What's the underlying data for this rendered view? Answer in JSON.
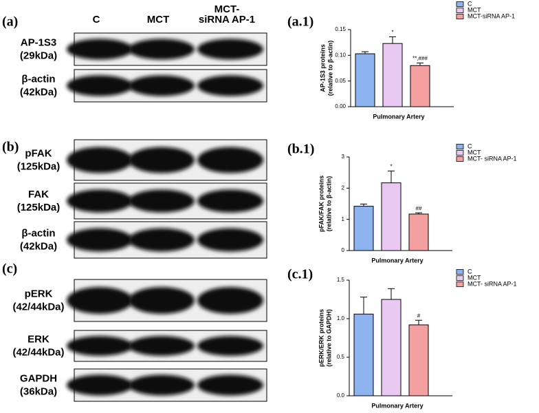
{
  "blots": [
    {
      "label": "(a)",
      "lanes": [
        "C",
        "MCT",
        [
          "MCT-",
          "siRNA AP-1"
        ]
      ],
      "rows": [
        {
          "name": "AP-1S3",
          "mw": "(29kDa)"
        },
        {
          "name": "β-actin",
          "mw": "(42kDa)"
        }
      ]
    },
    {
      "label": "(b)",
      "rows": [
        {
          "name": "pFAK",
          "mw": "(125kDa)"
        },
        {
          "name": "FAK",
          "mw": "(125kDa)"
        },
        {
          "name": "β-actin",
          "mw": "(42kDa)"
        }
      ]
    },
    {
      "label": "(c)",
      "rows": [
        {
          "name": "pERK",
          "mw": "(42/44kDa)"
        },
        {
          "name": "ERK",
          "mw": "(42/44kDa)"
        },
        {
          "name": "GAPDH",
          "mw": "(36kDa)"
        }
      ]
    }
  ],
  "chart_data": [
    {
      "type": "bar",
      "label": "(a.1)",
      "ylabel": [
        "AP-1S3 proteins",
        "(relative to β-actin)"
      ],
      "categories": [
        "Pulmonary Artery"
      ],
      "ylim": [
        0,
        0.15
      ],
      "yticks": [
        {
          "value": 0,
          "label": "0.00"
        },
        {
          "value": 0.05,
          "label": "0.05"
        },
        {
          "value": 0.1,
          "label": "0.10"
        },
        {
          "value": 0.15,
          "label": "0.15"
        }
      ],
      "series": [
        {
          "name": "C",
          "color": "#8db3f0",
          "values": [
            0.103
          ],
          "errors": [
            0.004
          ],
          "annotation": null
        },
        {
          "name": "MCT",
          "color": "#e9c9f2",
          "values": [
            0.123
          ],
          "errors": [
            0.013
          ],
          "annotation": "*"
        },
        {
          "name": "MCT-siRNA AP-1",
          "color": "#f4a0a0",
          "values": [
            0.08
          ],
          "errors": [
            0.005
          ],
          "annotation": "**,###"
        }
      ]
    },
    {
      "type": "bar",
      "label": "(b.1)",
      "ylabel": [
        "pFAK/FAK proteins",
        "(relative to β-actin)"
      ],
      "categories": [
        "Pulmonary Artery"
      ],
      "ylim": [
        0,
        3
      ],
      "yticks": [
        0,
        1,
        2,
        3
      ],
      "series": [
        {
          "name": "C",
          "color": "#8db3f0",
          "values": [
            1.42
          ],
          "errors": [
            0.07
          ],
          "annotation": null
        },
        {
          "name": "MCT",
          "color": "#e9c9f2",
          "values": [
            2.17
          ],
          "errors": [
            0.38
          ],
          "annotation": "*"
        },
        {
          "name": "MCT- siRNA AP-1",
          "color": "#f4a0a0",
          "values": [
            1.17
          ],
          "errors": [
            0.04
          ],
          "annotation": "##"
        }
      ]
    },
    {
      "type": "bar",
      "label": "(c.1)",
      "ylabel": [
        "pERK/ERK proteins",
        "(relative to GAPDH)"
      ],
      "categories": [
        "Pulmonary Artery"
      ],
      "ylim": [
        0,
        1.5
      ],
      "yticks": [
        {
          "value": 0,
          "label": "0.0"
        },
        {
          "value": 0.5,
          "label": "0.5"
        },
        {
          "value": 1,
          "label": "1.0"
        },
        {
          "value": 1.5,
          "label": "1.5"
        }
      ],
      "series": [
        {
          "name": "C",
          "color": "#8db3f0",
          "values": [
            1.06
          ],
          "errors": [
            0.22
          ],
          "annotation": null
        },
        {
          "name": "MCT",
          "color": "#e9c9f2",
          "values": [
            1.25
          ],
          "errors": [
            0.14
          ],
          "annotation": null
        },
        {
          "name": "MCT- siRNA AP-1",
          "color": "#f4a0a0",
          "values": [
            0.92
          ],
          "errors": [
            0.06
          ],
          "annotation": "#"
        }
      ]
    }
  ]
}
